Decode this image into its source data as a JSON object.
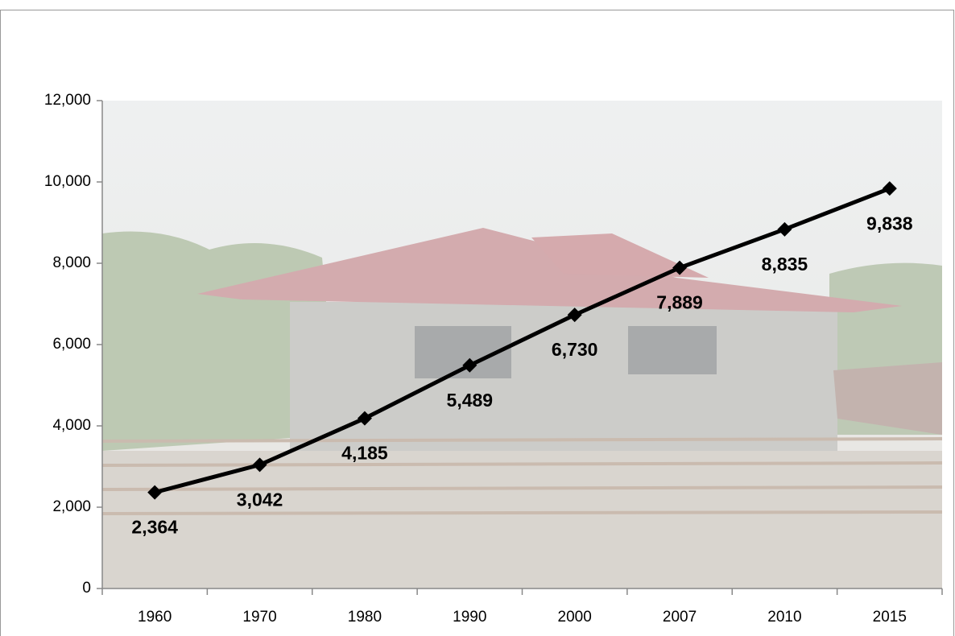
{
  "chart_data": {
    "type": "line",
    "categories": [
      "1960",
      "1970",
      "1980",
      "1990",
      "2000",
      "2007",
      "2010",
      "2015"
    ],
    "values": [
      2364,
      3042,
      4185,
      5489,
      6730,
      7889,
      8835,
      9838
    ],
    "value_labels": [
      "2,364",
      "3,042",
      "4,185",
      "5,489",
      "6,730",
      "7,889",
      "8,835",
      "9,838"
    ],
    "color": "#000000",
    "ylim": [
      0,
      12000
    ],
    "yticks": [
      0,
      {
        "value": 2000,
        "label": "2,000"
      },
      {
        "value": 4000,
        "label": "4,000"
      },
      {
        "value": 6000,
        "label": "6,000"
      },
      {
        "value": 8000,
        "label": "8,000"
      },
      {
        "value": 10000,
        "label": "10,000"
      },
      {
        "value": 12000,
        "label": "12,000"
      }
    ],
    "grid": false
  }
}
